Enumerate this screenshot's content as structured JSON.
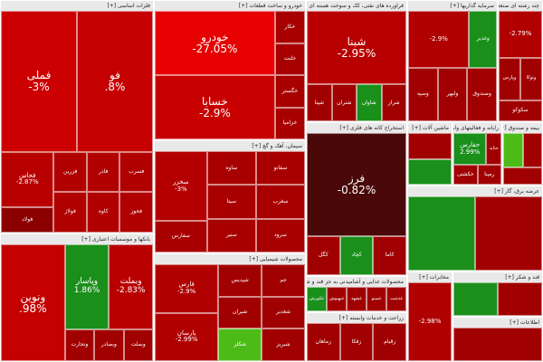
{
  "chart_data": {
    "type": "heatmap",
    "title": "",
    "colors": {
      "deep_red": "#a30000",
      "red": "#cc0000",
      "bright_red": "#e00000",
      "maroon": "#4a0808",
      "green": "#1a8f1a",
      "light_green": "#4cbb17",
      "header": "#e9e9e9"
    },
    "sectors": [
      {
        "header": "فلزات اساسی [+]",
        "tiles": [
          {
            "name": "فملی",
            "change": "-3%",
            "size": "xl",
            "color": "#cc0000"
          },
          {
            "name": "فو",
            "change": ".8%",
            "size": "xl",
            "color": "#c40000"
          },
          {
            "name": "فخاس",
            "change": "-2.87%",
            "size": "sm",
            "color": "#b80000"
          },
          {
            "name": "فولاد",
            "change": "",
            "size": "xs",
            "color": "#8d0000"
          },
          {
            "name": "فزرین",
            "change": "",
            "size": "xs",
            "color": "#b00000"
          },
          {
            "name": "فولاژ",
            "change": "",
            "size": "xs",
            "color": "#b00000"
          },
          {
            "name": "فاذر",
            "change": "",
            "size": "xs",
            "color": "#b00000"
          },
          {
            "name": "فسرب",
            "change": "",
            "size": "xs",
            "color": "#b00000"
          },
          {
            "name": "کاوه",
            "change": "",
            "size": "xs",
            "color": "#b00000"
          },
          {
            "name": "فخوز",
            "change": "",
            "size": "xs",
            "color": "#b00000"
          }
        ]
      },
      {
        "header": "خودرو و ساخت قطعات [+]",
        "tiles": [
          {
            "name": "خودرو",
            "change": "-27.05%",
            "size": "xl",
            "color": "#e60000"
          },
          {
            "name": "خسابا",
            "change": "-2.9%",
            "size": "xl",
            "color": "#c80000"
          },
          {
            "name": "خکار",
            "change": "",
            "size": "xs",
            "color": "#a80000"
          },
          {
            "name": "خلنت",
            "change": "",
            "size": "xs",
            "color": "#a80000"
          },
          {
            "name": "خگستر",
            "change": "",
            "size": "xs",
            "color": "#a80000"
          },
          {
            "name": "خزامیا",
            "change": "",
            "size": "xs",
            "color": "#a80000"
          }
        ]
      },
      {
        "header": "فراورده های نفتی، کک و سوخت هسته ای [+]",
        "tiles": [
          {
            "name": "شبنا",
            "change": "-2.95%",
            "size": "xl",
            "color": "#b80000"
          },
          {
            "name": "شپنا",
            "change": "",
            "size": "xs",
            "color": "#a00000"
          },
          {
            "name": "شتران",
            "change": "",
            "size": "xs",
            "color": "#a00000"
          },
          {
            "name": "شاوان",
            "change": "",
            "size": "xs",
            "color": "#1a8f1a"
          },
          {
            "name": "شراز",
            "change": "",
            "size": "xs",
            "color": "#a00000"
          }
        ]
      },
      {
        "header": "سرمایه گذاریها [+]",
        "tiles": [
          {
            "name": "",
            "change": "-2.9%",
            "size": "sm",
            "color": "#b00000"
          },
          {
            "name": "وغدیر",
            "change": "",
            "size": "xs",
            "color": "#1a8f1a"
          },
          {
            "name": "وسپه",
            "change": "",
            "size": "xs",
            "color": "#a00000"
          },
          {
            "name": "ولبهر",
            "change": "",
            "size": "xs",
            "color": "#a00000"
          },
          {
            "name": "وصندوق",
            "change": "",
            "size": "xs",
            "color": "#a00000"
          }
        ]
      },
      {
        "header": "چند رشته ای صنعتی [+]",
        "tiles": [
          {
            "name": "",
            "change": "-2.79%",
            "size": "sm",
            "color": "#b00000"
          },
          {
            "name": "وپارس",
            "change": "",
            "size": "xs",
            "color": "#a00000"
          },
          {
            "name": "وتوکا",
            "change": "",
            "size": "xs",
            "color": "#a00000"
          },
          {
            "name": "سکوکو",
            "change": "",
            "size": "xs",
            "color": "#a00000"
          }
        ]
      },
      {
        "header": "سیمان، آهک و گچ [+]",
        "tiles": [
          {
            "name": "سخزر",
            "change": "-3%",
            "size": "sm",
            "color": "#b40000"
          },
          {
            "name": "سفارس",
            "change": "",
            "size": "xs",
            "color": "#a80000"
          },
          {
            "name": "ساوه",
            "change": "",
            "size": "xs",
            "color": "#a80000"
          },
          {
            "name": "سفانو",
            "change": "",
            "size": "xs",
            "color": "#a80000"
          },
          {
            "name": "سیتا",
            "change": "",
            "size": "xs",
            "color": "#a80000"
          },
          {
            "name": "سنیر",
            "change": "",
            "size": "xs",
            "color": "#a80000"
          },
          {
            "name": "سغرب",
            "change": "",
            "size": "xs",
            "color": "#a80000"
          },
          {
            "name": "سرود",
            "change": "",
            "size": "xs",
            "color": "#a80000"
          }
        ]
      },
      {
        "header": "استخراج کانه های فلزی [+]",
        "tiles": [
          {
            "name": "فرز",
            "change": "-0.82%",
            "size": "xl",
            "color": "#4a0808"
          },
          {
            "name": "کگل",
            "change": "",
            "size": "xs",
            "color": "#a00000"
          },
          {
            "name": "کچاد",
            "change": "",
            "size": "xs",
            "color": "#1a8f1a"
          },
          {
            "name": "کاما",
            "change": "",
            "size": "xs",
            "color": "#a00000"
          }
        ]
      },
      {
        "header": "ماشین آلات [+]",
        "tiles": [
          {
            "name": "",
            "change": "",
            "size": "xs",
            "color": "#a00000"
          },
          {
            "name": "",
            "change": "",
            "size": "xs",
            "color": "#1a8f1a"
          }
        ]
      },
      {
        "header": "رایانه و فعالیتهای وابسته [+]",
        "tiles": [
          {
            "name": "حفارس",
            "change": "2.99%",
            "size": "sm",
            "color": "#1a8f1a"
          },
          {
            "name": "حتاید",
            "change": "",
            "size": "xs",
            "color": "#a00000"
          },
          {
            "name": "حکشتی",
            "change": "",
            "size": "xs",
            "color": "#a00000"
          },
          {
            "name": "رمپنا",
            "change": "",
            "size": "xs",
            "color": "#a00000"
          }
        ]
      },
      {
        "header": "بیمه و صندوق [+]",
        "tiles": [
          {
            "name": "",
            "change": "",
            "size": "xs",
            "color": "#4cbb17"
          },
          {
            "name": "",
            "change": "",
            "size": "xs",
            "color": "#a00000"
          },
          {
            "name": "",
            "change": "",
            "size": "xs",
            "color": "#a00000"
          }
        ]
      },
      {
        "header": "بانکها و موسسات اعتباری [+]",
        "tiles": [
          {
            "name": "ونوین",
            "change": ".98%",
            "size": "xl",
            "color": "#c40000"
          },
          {
            "name": "وپاسار",
            "change": "1.86%",
            "size": "lg",
            "color": "#1a8f1a"
          },
          {
            "name": "وبملت",
            "change": "-2.83%",
            "size": "lg",
            "color": "#b80000"
          },
          {
            "name": "وتجارت",
            "change": "",
            "size": "xs",
            "color": "#a00000"
          },
          {
            "name": "وبصادر",
            "change": "",
            "size": "xs",
            "color": "#a00000"
          },
          {
            "name": "وبملت",
            "change": "",
            "size": "xs",
            "color": "#a00000"
          }
        ]
      },
      {
        "header": "محصولات شیمیایی [+]",
        "tiles": [
          {
            "name": "فارس",
            "change": "-2.9%",
            "size": "sm",
            "color": "#b00000"
          },
          {
            "name": "پارسان",
            "change": "-2.99%",
            "size": "sm",
            "color": "#b00000"
          },
          {
            "name": "شپدیس",
            "change": "",
            "size": "xs",
            "color": "#a00000"
          },
          {
            "name": "جم",
            "change": "",
            "size": "xs",
            "color": "#a00000"
          },
          {
            "name": "شیران",
            "change": "",
            "size": "xs",
            "color": "#a00000"
          },
          {
            "name": "شکلر",
            "change": "",
            "size": "xs",
            "color": "#4cbb17"
          },
          {
            "name": "شغدیر",
            "change": "",
            "size": "xs",
            "color": "#a00000"
          },
          {
            "name": "شبریز",
            "change": "",
            "size": "xs",
            "color": "#a00000"
          }
        ]
      },
      {
        "header": "محصولات غذایی و آشامیدنی به جز قند و شکر [+]",
        "tiles": [
          {
            "name": "غکورش",
            "change": "",
            "size": "xs",
            "color": "#1a8f1a"
          },
          {
            "name": "غبهنوش",
            "change": "",
            "size": "xs",
            "color": "#a00000"
          },
          {
            "name": "غشهد",
            "change": "",
            "size": "xs",
            "color": "#a00000"
          },
          {
            "name": "غمینو",
            "change": "",
            "size": "xs",
            "color": "#a00000"
          },
          {
            "name": "غدشت",
            "change": "",
            "size": "xs",
            "color": "#a00000"
          }
        ]
      },
      {
        "header": "عرضه برق، گاز [+]",
        "tiles": [
          {
            "name": "",
            "change": "",
            "size": "xs",
            "color": "#1a8f1a"
          },
          {
            "name": "",
            "change": "",
            "size": "xs",
            "color": "#a00000"
          }
        ]
      },
      {
        "header": "زراعت و خدمات وابسته [+]",
        "tiles": [
          {
            "name": "زماهان",
            "change": "",
            "size": "xs",
            "color": "#a00000"
          },
          {
            "name": "زفکا",
            "change": "",
            "size": "xs",
            "color": "#a00000"
          },
          {
            "name": "زقیام",
            "change": "",
            "size": "xs",
            "color": "#a00000"
          }
        ]
      },
      {
        "header": "مخابرات [+]",
        "tiles": [
          {
            "name": "",
            "change": "-2.98%",
            "size": "sm",
            "color": "#b00000"
          }
        ]
      },
      {
        "header": "قند و شکر [+]",
        "tiles": [
          {
            "name": "",
            "change": "",
            "size": "xs",
            "color": "#1a8f1a"
          },
          {
            "name": "",
            "change": "",
            "size": "xs",
            "color": "#a00000"
          }
        ]
      },
      {
        "header": "اطلاعات [+]",
        "tiles": [
          {
            "name": "",
            "change": "",
            "size": "xs",
            "color": "#a00000"
          }
        ]
      }
    ]
  }
}
